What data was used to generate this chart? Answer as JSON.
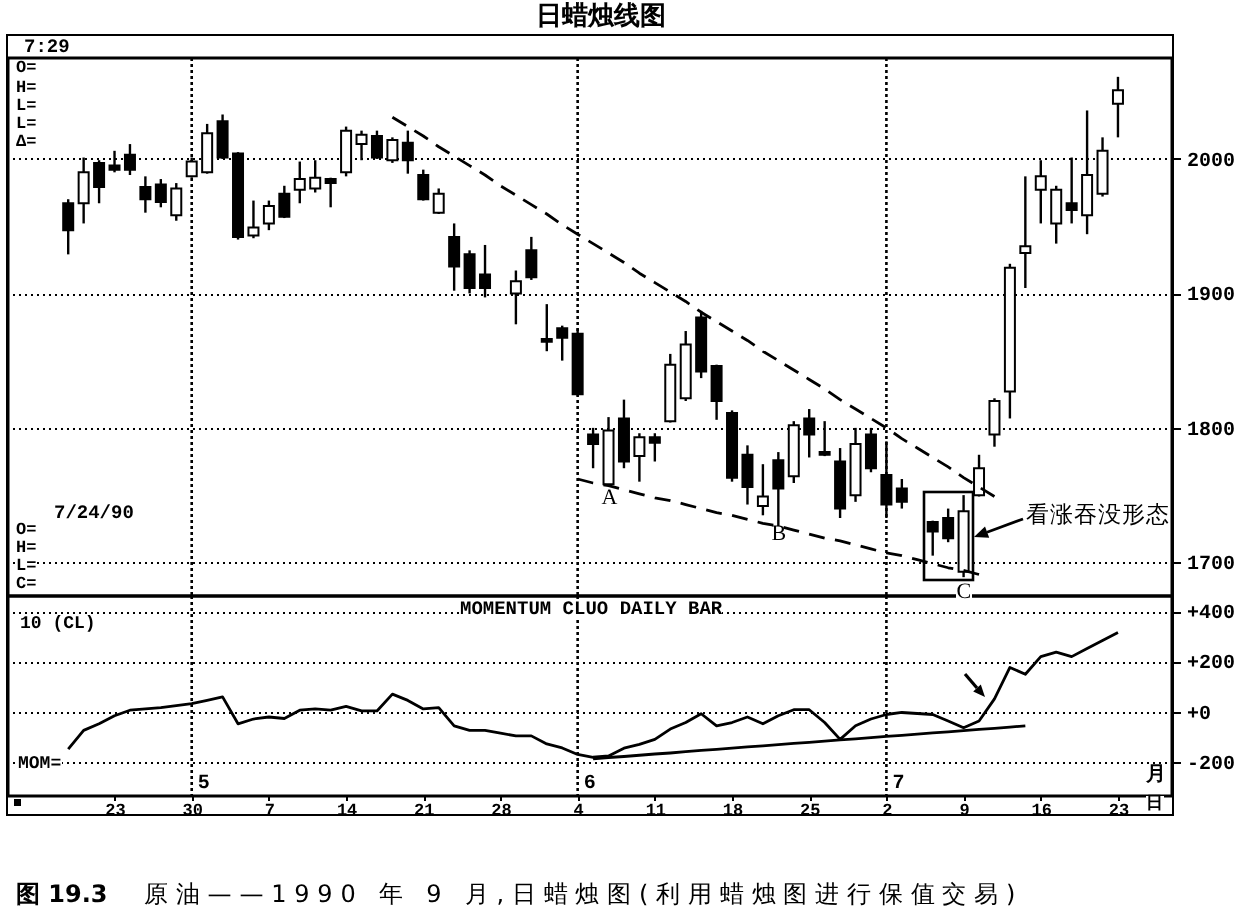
{
  "chart_data": [
    {
      "type": "candlestick",
      "title": "日蜡烛线图",
      "categories": [
        null,
        null,
        null,
        "23",
        null,
        null,
        null,
        null,
        "30",
        null,
        null,
        null,
        null,
        "7",
        null,
        null,
        null,
        null,
        "14",
        null,
        null,
        null,
        null,
        "21",
        null,
        null,
        null,
        null,
        "28",
        null,
        null,
        null,
        null,
        "4",
        null,
        null,
        null,
        null,
        "11",
        null,
        null,
        null,
        null,
        "18",
        null,
        null,
        null,
        null,
        "25",
        null,
        null,
        null,
        null,
        "2",
        null,
        null,
        null,
        null,
        "9",
        null,
        null,
        null,
        null,
        "16",
        null,
        null,
        null,
        null,
        "23"
      ],
      "ohlc": [
        [
          1967,
          1970,
          1929,
          1947
        ],
        [
          1967,
          2001,
          1952,
          1990
        ],
        [
          1997,
          1999,
          1967,
          1979
        ],
        [
          1995,
          2006,
          1990,
          1992
        ],
        [
          2003,
          2011,
          1988,
          1992
        ],
        [
          1979,
          1987,
          1960,
          1970
        ],
        [
          1981,
          1985,
          1964,
          1968
        ],
        [
          1958,
          1982,
          1954,
          1978
        ],
        [
          1987,
          2001,
          1986,
          1998
        ],
        [
          1990,
          2026,
          1989,
          2019
        ],
        [
          2028,
          2033,
          2000,
          2001
        ],
        [
          2004,
          2005,
          1940,
          1942
        ],
        [
          1943,
          1969,
          1941,
          1949
        ],
        [
          1952,
          1969,
          1947,
          1965
        ],
        [
          1974,
          1980,
          1956,
          1957
        ],
        [
          1977,
          1998,
          1967,
          1985
        ],
        [
          1978,
          1999,
          1975,
          1986
        ],
        [
          1985,
          1986,
          1964,
          1982
        ],
        [
          1990,
          2024,
          1987,
          2021
        ],
        [
          2011,
          2021,
          1999,
          2018
        ],
        [
          2017,
          2021,
          2000,
          2001
        ],
        [
          1999,
          2016,
          1997,
          2014
        ],
        [
          2012,
          2021,
          1989,
          1999
        ],
        [
          1988,
          1992,
          1969,
          1970
        ],
        [
          1960,
          1978,
          1959,
          1974
        ],
        [
          1942,
          1952,
          1902,
          1920
        ],
        [
          1929,
          1932,
          1900,
          1904
        ],
        [
          1914,
          1936,
          1897,
          1904
        ],
        null,
        [
          1900,
          1917,
          1877,
          1909
        ],
        [
          1932,
          1942,
          1910,
          1912
        ],
        [
          1866,
          1892,
          1857,
          1864
        ],
        [
          1874,
          1876,
          1850,
          1867
        ],
        [
          1870,
          1874,
          1824,
          1825
        ],
        [
          1795,
          1800,
          1770,
          1788
        ],
        [
          1758,
          1808,
          1757,
          1798
        ],
        [
          1807,
          1821,
          1770,
          1775
        ],
        [
          1779,
          1796,
          1760,
          1793
        ],
        [
          1793,
          1796,
          1775,
          1789
        ],
        [
          1805,
          1855,
          1804,
          1847
        ],
        [
          1822,
          1872,
          1820,
          1862
        ],
        [
          1882,
          1887,
          1837,
          1842
        ],
        [
          1846,
          1847,
          1806,
          1820
        ],
        [
          1811,
          1813,
          1760,
          1763
        ],
        [
          1780,
          1787,
          1743,
          1756
        ],
        [
          1742,
          1773,
          1735,
          1749
        ],
        [
          1776,
          1782,
          1727,
          1755
        ],
        [
          1764,
          1805,
          1759,
          1802
        ],
        [
          1807,
          1814,
          1778,
          1795
        ],
        [
          1782,
          1805,
          1779,
          1780
        ],
        [
          1775,
          1785,
          1733,
          1740
        ],
        [
          1750,
          1800,
          1745,
          1788
        ],
        [
          1795,
          1800,
          1767,
          1770
        ],
        [
          1765,
          1790,
          1733,
          1743
        ],
        [
          1755,
          1762,
          1740,
          1745
        ],
        null,
        [
          1730,
          1731,
          1705,
          1723
        ],
        [
          1733,
          1740,
          1715,
          1718
        ],
        [
          1693,
          1750,
          1689,
          1738
        ],
        [
          1750,
          1780,
          1749,
          1770
        ],
        [
          1795,
          1822,
          1786,
          1820
        ],
        [
          1827,
          1922,
          1807,
          1919
        ],
        [
          1930,
          1987,
          1904,
          1935
        ],
        [
          1977,
          1999,
          1952,
          1987
        ],
        [
          1952,
          1980,
          1937,
          1977
        ],
        [
          1967,
          2001,
          1952,
          1962
        ],
        [
          1958,
          2036,
          1944,
          1988
        ],
        [
          1974,
          2016,
          1972,
          2006
        ],
        [
          2041,
          2061,
          2016,
          2051
        ]
      ],
      "colors": [
        "#000000",
        "#ffffff",
        "#000000",
        "#000000",
        "#000000",
        "#000000",
        "#000000",
        "#ffffff",
        "#ffffff",
        "#ffffff",
        "#000000",
        "#000000",
        "#ffffff",
        "#ffffff",
        "#000000",
        "#ffffff",
        "#ffffff",
        "#000000",
        "#ffffff",
        "#ffffff",
        "#000000",
        "#ffffff",
        "#000000",
        "#000000",
        "#ffffff",
        "#000000",
        "#000000",
        "#000000",
        null,
        "#ffffff",
        "#000000",
        "#000000",
        "#000000",
        "#000000",
        "#000000",
        "#ffffff",
        "#000000",
        "#ffffff",
        "#000000",
        "#ffffff",
        "#ffffff",
        "#000000",
        "#000000",
        "#000000",
        "#000000",
        "#ffffff",
        "#000000",
        "#ffffff",
        "#000000",
        "#000000",
        "#000000",
        "#ffffff",
        "#000000",
        "#000000",
        "#000000",
        null,
        "#000000",
        "#000000",
        "#ffffff",
        "#ffffff",
        "#ffffff",
        "#ffffff",
        "#ffffff",
        "#ffffff",
        "#ffffff",
        "#000000",
        "#ffffff",
        "#ffffff",
        "#ffffff"
      ],
      "series": [
        {
          "type": "line",
          "color": "#000000",
          "values": [
            null,
            null,
            null,
            null,
            null,
            null,
            null,
            null,
            null,
            null,
            null,
            null,
            null,
            null,
            null,
            null,
            null,
            null,
            null,
            null,
            null,
            2031,
            2024,
            2017,
            2009,
            2002,
            1995,
            1988,
            1980,
            1973,
            1966,
            1959,
            1951,
            1944,
            1937,
            1930,
            1923,
            1915,
            1908,
            1901,
            1894,
            1886,
            1879,
            1872,
            1865,
            1857,
            1850,
            1843,
            1836,
            1829,
            1821,
            1814,
            1807,
            1800,
            1792,
            1785,
            1778,
            1771,
            1763,
            1756,
            1749,
            null,
            null,
            null,
            null,
            null,
            null,
            null,
            null
          ]
        },
        {
          "type": "line",
          "color": "#000000",
          "values": [
            null,
            null,
            null,
            null,
            null,
            null,
            null,
            null,
            null,
            null,
            null,
            null,
            null,
            null,
            null,
            null,
            null,
            null,
            null,
            null,
            null,
            null,
            null,
            null,
            null,
            null,
            null,
            null,
            null,
            null,
            null,
            null,
            null,
            1762,
            1759,
            1757,
            1754,
            1751,
            1748,
            1746,
            1743,
            1740,
            1737,
            1735,
            1732,
            1729,
            1727,
            1724,
            1721,
            1718,
            1716,
            1713,
            1710,
            1707,
            1705,
            1702,
            1699,
            1696,
            1694,
            1691,
            null,
            null,
            null,
            null,
            null,
            null,
            null,
            null,
            null
          ]
        }
      ],
      "ylim": [
        1675,
        2075
      ],
      "yticks": [
        1700,
        1800,
        1900,
        2000
      ],
      "grid": "y",
      "tick_labels": "y",
      "line_style": "dashed",
      "ref_lines": [
        {
          "axis": "x",
          "value": "30",
          "line_style": "dotted"
        },
        {
          "axis": "x",
          "value": "4",
          "line_style": "dotted"
        },
        {
          "axis": "x",
          "value": "2",
          "line_style": "dotted"
        }
      ],
      "annotations": [
        "7:29",
        "O=",
        "H=",
        "L=",
        "L=",
        "Δ=",
        "7/24/90",
        "O=",
        "H=",
        "L=",
        "C=",
        "A",
        "B",
        "C",
        "看涨吞没形态"
      ]
    },
    {
      "type": "line",
      "title": "MOMENTUM CLUO DAILY BAR",
      "subtitle": "10 (CL)",
      "xlabel": "日",
      "ylabel": "MOM=",
      "categories": [
        null,
        null,
        null,
        "23",
        null,
        null,
        null,
        null,
        "30",
        null,
        null,
        null,
        null,
        "7",
        null,
        null,
        null,
        null,
        "14",
        null,
        null,
        null,
        null,
        "21",
        null,
        null,
        null,
        null,
        "28",
        null,
        null,
        null,
        null,
        "4",
        null,
        null,
        null,
        null,
        "11",
        null,
        null,
        null,
        null,
        "18",
        null,
        null,
        null,
        null,
        "25",
        null,
        null,
        null,
        null,
        "2",
        null,
        null,
        null,
        null,
        "9",
        null,
        null,
        null,
        null,
        "16",
        null,
        null,
        null,
        null,
        "23"
      ],
      "series": [
        {
          "color": "#000000",
          "values": [
            -149,
            -74,
            -48,
            -16,
            6,
            11,
            16,
            24,
            32,
            45,
            59,
            -48,
            -29,
            -21,
            -27,
            6,
            11,
            6,
            21,
            3,
            3,
            70,
            45,
            11,
            16,
            -56,
            -74,
            -74,
            -85,
            -96,
            -96,
            -128,
            -144,
            -170,
            -181,
            -176,
            -145,
            -130,
            -110,
            -69,
            -43,
            -8,
            -56,
            -43,
            -21,
            -48,
            -16,
            8,
            8,
            -43,
            -110,
            -56,
            -29,
            -11,
            -3,
            -7,
            -11,
            -37,
            -64,
            -37,
            51,
            176,
            149,
            219,
            237,
            219,
            251,
            283,
            315
          ]
        },
        {
          "color": "#000000",
          "values": [
            null,
            null,
            null,
            null,
            null,
            null,
            null,
            null,
            null,
            null,
            null,
            null,
            null,
            null,
            null,
            null,
            null,
            null,
            null,
            null,
            null,
            null,
            null,
            null,
            null,
            null,
            null,
            null,
            null,
            null,
            null,
            null,
            null,
            null,
            -187,
            -182,
            -178,
            -173,
            -168,
            -164,
            -159,
            -154,
            -150,
            -145,
            -140,
            -136,
            -131,
            -126,
            -122,
            -117,
            -112,
            -108,
            -103,
            -98,
            -94,
            -89,
            -84,
            -80,
            -75,
            -70,
            -66,
            -61,
            -56,
            null,
            null,
            null,
            null,
            null,
            null
          ]
        }
      ],
      "ylim": [
        -335,
        460
      ],
      "yticks": [
        -200,
        {
          "value": 0,
          "label": "+0"
        },
        {
          "value": 200,
          "label": "+200"
        },
        {
          "value": 400,
          "label": "+400"
        }
      ],
      "grid": "y",
      "ref_lines": [
        {
          "axis": "x",
          "value": "30",
          "label": "5",
          "line_style": "dotted"
        },
        {
          "axis": "x",
          "value": "4",
          "label": "6",
          "line_style": "dotted"
        },
        {
          "axis": "x",
          "value": "2",
          "label": "7",
          "line_style": "dotted"
        }
      ],
      "annotations": [
        "月",
        "图 19.3",
        "原油——1990 年 9 月,日蜡烛图(利用蜡烛图进行保值交易)"
      ]
    }
  ]
}
